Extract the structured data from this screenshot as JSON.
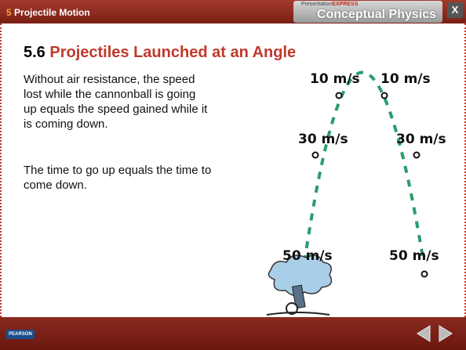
{
  "header": {
    "section_number": "5",
    "section_title": "Projectile Motion",
    "brand_prefix": "Presentation",
    "brand_suffix": "EXPRESS",
    "brand_title": "Conceptual Physics",
    "close": "X"
  },
  "slide": {
    "title_number": "5.6",
    "title_text": "Projectiles Launched at an Angle",
    "paragraphs": [
      "Without air resistance, the speed lost while the cannonball is going up equals the speed gained while it is coming down.",
      "The time to go up equals the time to come down."
    ]
  },
  "figure": {
    "labels": [
      "10 m/s",
      "10 m/s",
      "30 m/s",
      "30 m/s",
      "50 m/s",
      "50 m/s"
    ]
  },
  "footer": {
    "logo": "PEARSON"
  }
}
